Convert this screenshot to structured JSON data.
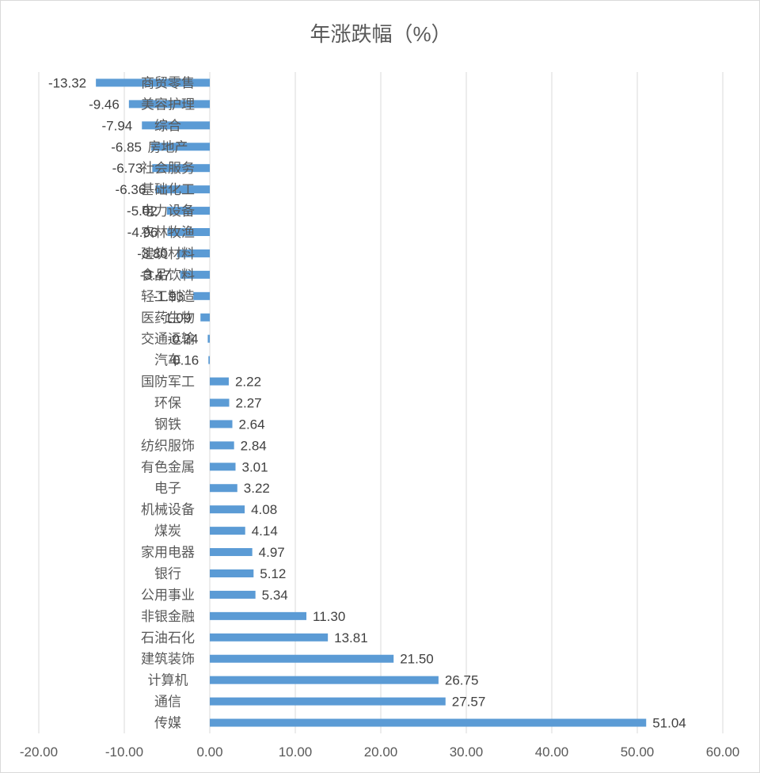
{
  "chart_data": {
    "type": "bar",
    "orientation": "horizontal",
    "title": "年涨跌幅（%）",
    "xlim": [
      -20,
      60
    ],
    "xticks": [
      "-20.00",
      "-10.00",
      "0.00",
      "10.00",
      "20.00",
      "30.00",
      "40.00",
      "50.00",
      "60.00"
    ],
    "grid": true,
    "bar_color": "#5b9bd5",
    "categories": [
      "商贸零售",
      "美容护理",
      "综合",
      "房地产",
      "社会服务",
      "基础化工",
      "电力设备",
      "农林牧渔",
      "建筑材料",
      "食品饮料",
      "轻工制造",
      "医药生物",
      "交通运输",
      "汽车",
      "国防军工",
      "环保",
      "钢铁",
      "纺织服饰",
      "有色金属",
      "电子",
      "机械设备",
      "煤炭",
      "家用电器",
      "银行",
      "公用事业",
      "非银金融",
      "石油石化",
      "建筑装饰",
      "计算机",
      "通信",
      "传媒"
    ],
    "values": [
      -13.32,
      -9.46,
      -7.94,
      -6.85,
      -6.73,
      -6.36,
      -5.02,
      -4.96,
      -3.8,
      -3.47,
      -1.93,
      -1.09,
      -0.24,
      -0.16,
      2.22,
      2.27,
      2.64,
      2.84,
      3.01,
      3.22,
      4.08,
      4.14,
      4.97,
      5.12,
      5.34,
      11.3,
      13.81,
      21.5,
      26.75,
      27.57,
      51.04
    ],
    "value_labels": [
      "-13.32",
      "-9.46",
      "-7.94",
      "-6.85",
      "-6.73",
      "-6.36",
      "-5.02",
      "-4.96",
      "-3.80",
      "-3.47",
      "-1.93",
      "-1.09",
      "-0.24",
      "-0.16",
      "2.22",
      "2.27",
      "2.64",
      "2.84",
      "3.01",
      "3.22",
      "4.08",
      "4.14",
      "4.97",
      "5.12",
      "5.34",
      "11.30",
      "13.81",
      "21.50",
      "26.75",
      "27.57",
      "51.04"
    ]
  }
}
